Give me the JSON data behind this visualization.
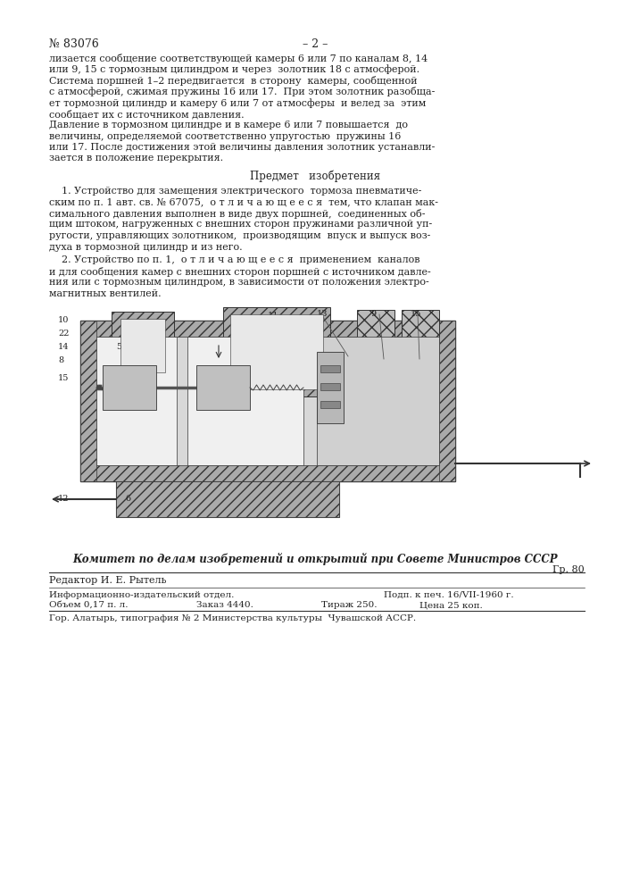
{
  "page_number": "– 2 –",
  "patent_number": "№ 83076",
  "background_color": "#f5f5f0",
  "page_bg": "#ffffff",
  "text_color": "#222222",
  "title_text": "Предмет   изобретения",
  "bottom_text_committee": "Комитет по делам изобретений и открытий при Совете Министров СССР",
  "bottom_text_gr": "Гр. 80",
  "bottom_text_editor": "Редактор И. Е. Рытель",
  "bottom_text_info": "Информационно-издательский отдел.",
  "bottom_text_podp": "Подп. к печ. 16/VII-1960 г.",
  "bottom_text_obem": "Объем 0,17 п. л.",
  "bottom_text_zakaz": "Заказ 4440.",
  "bottom_text_tirazh": "Тираж 250.",
  "bottom_text_cena": "Цена 25 коп.",
  "bottom_text_gor": "Гор. Алатырь, типография № 2 Министерства культуры  Чувашской АССР.",
  "intro_lines": [
    "лизается сообщение соответствующей камеры 6 или 7 по каналам 8, 14",
    "или 9, 15 с тормозным цилиндром и через  золотник 18 с атмосферой.",
    "Система поршней 1–2 передвигается  в сторону  камеры, сообщенной",
    "с атмосферой, сжимая пружины 16 или 17.  При этом золотник разобща-",
    "ет тормозной цилиндр и камеру 6 или 7 от атмосферы  и велед за  этим",
    "сообщает их с источником давления.",
    "Давление в тормозном цилиндре и в камере 6 или 7 повышается  до",
    "величины, определяемой соответственно упругостью  пружины 16",
    "или 17. После достижения этой величины давления золотник устанавли-",
    "зается в положение перекрытия."
  ],
  "p1_lines": [
    "    1. Устройство для замещения электрического  тормоза пневматиче-",
    "ским по п. 1 авт. св. № 67075,  о т л и ч а ю щ е е с я  тем, что клапан мак-",
    "симального давления выполнен в виде двух поршней,  соединенных об-",
    "щим штоком, нагруженных с внешних сторон пружинами различной уп-",
    "ругости, управляющих золотником,  производящим  впуск и выпуск воз-",
    "духа в тормозной цилиндр и из него."
  ],
  "p2_lines": [
    "    2. Устройство по п. 1,  о т л и ч а ю щ е е с я  применением  каналов",
    "и для сообщения камер с внешних сторон поршней с источником давле-",
    "ния или с тормозным цилиндром, в зависимости от положения электро-",
    "магнитных вентилей."
  ]
}
